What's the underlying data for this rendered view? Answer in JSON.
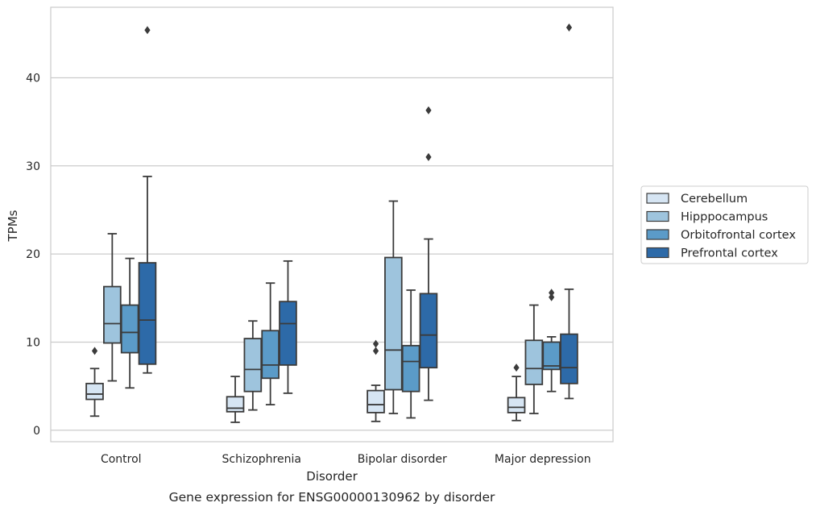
{
  "chart_data": {
    "type": "boxplot",
    "caption": "Gene expression for ENSG00000130962 by disorder",
    "xlabel": "Disorder",
    "ylabel": "TPMs",
    "ylim": [
      -1.3,
      48
    ],
    "yticks": [
      0,
      10,
      20,
      30,
      40
    ],
    "grid": "horizontal",
    "legend_position": "right",
    "categories": [
      "Control",
      "Schizophrenia",
      "Bipolar disorder",
      "Major depression"
    ],
    "series": [
      {
        "name": "Cerebellum",
        "color": "#d6e5f3",
        "boxes": [
          {
            "whislo": 1.6,
            "q1": 3.5,
            "med": 4.1,
            "q3": 5.3,
            "whishi": 7.0,
            "fliers": [
              9.0
            ]
          },
          {
            "whislo": 0.9,
            "q1": 2.1,
            "med": 2.5,
            "q3": 3.8,
            "whishi": 6.1,
            "fliers": []
          },
          {
            "whislo": 1.0,
            "q1": 2.0,
            "med": 2.9,
            "q3": 4.5,
            "whishi": 5.1,
            "fliers": [
              9.0,
              9.8
            ]
          },
          {
            "whislo": 1.1,
            "q1": 2.0,
            "med": 2.6,
            "q3": 3.7,
            "whishi": 6.1,
            "fliers": [
              7.1
            ]
          }
        ]
      },
      {
        "name": "Hipppocampus",
        "color": "#9ec4dd",
        "boxes": [
          {
            "whislo": 5.6,
            "q1": 9.9,
            "med": 12.1,
            "q3": 16.3,
            "whishi": 22.3,
            "fliers": []
          },
          {
            "whislo": 2.3,
            "q1": 4.4,
            "med": 6.9,
            "q3": 10.4,
            "whishi": 12.4,
            "fliers": []
          },
          {
            "whislo": 1.9,
            "q1": 4.6,
            "med": 9.1,
            "q3": 19.6,
            "whishi": 26.0,
            "fliers": []
          },
          {
            "whislo": 1.9,
            "q1": 5.2,
            "med": 7.0,
            "q3": 10.2,
            "whishi": 14.2,
            "fliers": []
          }
        ]
      },
      {
        "name": "Orbitofrontal cortex",
        "color": "#5b9bc8",
        "boxes": [
          {
            "whislo": 4.8,
            "q1": 8.8,
            "med": 11.1,
            "q3": 14.2,
            "whishi": 19.5,
            "fliers": []
          },
          {
            "whislo": 2.9,
            "q1": 5.9,
            "med": 7.4,
            "q3": 11.3,
            "whishi": 16.7,
            "fliers": []
          },
          {
            "whislo": 1.4,
            "q1": 4.4,
            "med": 7.8,
            "q3": 9.6,
            "whishi": 15.9,
            "fliers": []
          },
          {
            "whislo": 4.4,
            "q1": 6.9,
            "med": 7.3,
            "q3": 10.0,
            "whishi": 10.6,
            "fliers": [
              15.1,
              15.6
            ]
          }
        ]
      },
      {
        "name": "Prefrontal cortex",
        "color": "#2d6aa8",
        "boxes": [
          {
            "whislo": 6.5,
            "q1": 7.5,
            "med": 12.5,
            "q3": 19.0,
            "whishi": 28.8,
            "fliers": [
              45.4
            ]
          },
          {
            "whislo": 4.2,
            "q1": 7.4,
            "med": 12.1,
            "q3": 14.6,
            "whishi": 19.2,
            "fliers": []
          },
          {
            "whislo": 3.4,
            "q1": 7.1,
            "med": 10.8,
            "q3": 15.5,
            "whishi": 21.7,
            "fliers": [
              31.0,
              36.3
            ]
          },
          {
            "whislo": 3.6,
            "q1": 5.3,
            "med": 7.1,
            "q3": 10.9,
            "whishi": 16.0,
            "fliers": [
              45.7
            ]
          }
        ]
      }
    ]
  }
}
